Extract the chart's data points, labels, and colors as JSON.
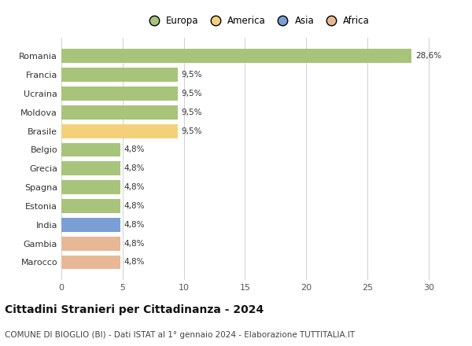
{
  "categories": [
    "Marocco",
    "Gambia",
    "India",
    "Estonia",
    "Spagna",
    "Grecia",
    "Belgio",
    "Brasile",
    "Moldova",
    "Ucraina",
    "Francia",
    "Romania"
  ],
  "values": [
    4.8,
    4.8,
    4.8,
    4.8,
    4.8,
    4.8,
    4.8,
    9.5,
    9.5,
    9.5,
    9.5,
    28.6
  ],
  "bar_colors": [
    "#e8b896",
    "#e8b896",
    "#7b9fd4",
    "#a8c47a",
    "#a8c47a",
    "#a8c47a",
    "#a8c47a",
    "#f5d07a",
    "#a8c47a",
    "#a8c47a",
    "#a8c47a",
    "#a8c47a"
  ],
  "labels": [
    "4,8%",
    "4,8%",
    "4,8%",
    "4,8%",
    "4,8%",
    "4,8%",
    "4,8%",
    "9,5%",
    "9,5%",
    "9,5%",
    "9,5%",
    "28,6%"
  ],
  "xlim": [
    0,
    32
  ],
  "xticks": [
    0,
    5,
    10,
    15,
    20,
    25,
    30
  ],
  "title1": "Cittadini Stranieri per Cittadinanza - 2024",
  "title2": "COMUNE DI BIOGLIO (BI) - Dati ISTAT al 1° gennaio 2024 - Elaborazione TUTTITALIA.IT",
  "legend_labels": [
    "Europa",
    "America",
    "Asia",
    "Africa"
  ],
  "legend_colors": [
    "#a8c47a",
    "#f5d07a",
    "#7b9fd4",
    "#e8b896"
  ],
  "background_color": "#ffffff",
  "bar_height": 0.75,
  "label_fontsize": 7.5,
  "tick_fontsize": 8,
  "title1_fontsize": 10,
  "title2_fontsize": 7.5,
  "legend_fontsize": 8.5
}
